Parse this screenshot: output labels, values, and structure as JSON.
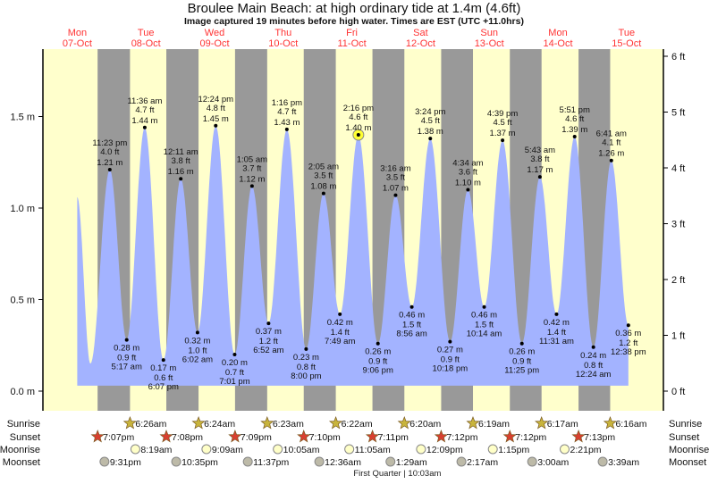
{
  "title": "Broulee Main Beach: at high  ordinary tide at 1.4m (4.6ft)",
  "subtitle": "Image captured 19 minutes before high water. Times are EST (UTC +11.0hrs)",
  "colors": {
    "day": "#ffffcc",
    "night": "#999999",
    "tide": "#a3b3ff",
    "day_label": "#ff3333",
    "sunrise": "#c8b43c",
    "sunset": "#d84030",
    "moonrise": "#ffffc8",
    "moonset": "#bdbaa8",
    "now_marker": "#ffff33"
  },
  "chart_data": {
    "type": "area",
    "title": "Broulee Main Beach: at high  ordinary tide at 1.4m (4.6ft)",
    "days": [
      {
        "dow": "Mon",
        "date": "07-Oct"
      },
      {
        "dow": "Tue",
        "date": "08-Oct"
      },
      {
        "dow": "Wed",
        "date": "09-Oct"
      },
      {
        "dow": "Thu",
        "date": "10-Oct"
      },
      {
        "dow": "Fri",
        "date": "11-Oct"
      },
      {
        "dow": "Sat",
        "date": "12-Oct"
      },
      {
        "dow": "Sun",
        "date": "13-Oct"
      },
      {
        "dow": "Mon",
        "date": "14-Oct"
      },
      {
        "dow": "Tue",
        "date": "15-Oct"
      }
    ],
    "y_left": {
      "unit": "m",
      "ticks": [
        "0.0 m",
        "0.5 m",
        "1.0 m",
        "1.5 m"
      ],
      "tick_values": [
        0,
        0.5,
        1.0,
        1.5
      ]
    },
    "y_right": {
      "unit": "ft",
      "ticks": [
        "0 ft",
        "1 ft",
        "2 ft",
        "3 ft",
        "4 ft",
        "5 ft",
        "6 ft"
      ],
      "tick_values": [
        0,
        1,
        2,
        3,
        4,
        5,
        6
      ]
    },
    "tides": [
      {
        "type": "high",
        "date": "07-Oct",
        "time": "11:23 pm",
        "ft": "4.0 ft",
        "m": "1.21 m",
        "value": 1.21
      },
      {
        "type": "low",
        "date": "08-Oct",
        "time": "5:17 am",
        "ft": "0.9 ft",
        "m": "0.28 m",
        "value": 0.28
      },
      {
        "type": "high",
        "date": "08-Oct",
        "time": "11:36 am",
        "ft": "4.7 ft",
        "m": "1.44 m",
        "value": 1.44
      },
      {
        "type": "low",
        "date": "08-Oct",
        "time": "6:07 pm",
        "ft": "0.6 ft",
        "m": "0.17 m",
        "value": 0.17
      },
      {
        "type": "high",
        "date": "09-Oct",
        "time": "12:11 am",
        "ft": "3.8 ft",
        "m": "1.16 m",
        "value": 1.16
      },
      {
        "type": "low",
        "date": "09-Oct",
        "time": "6:02 am",
        "ft": "1.0 ft",
        "m": "0.32 m",
        "value": 0.32
      },
      {
        "type": "high",
        "date": "09-Oct",
        "time": "12:24 pm",
        "ft": "4.8 ft",
        "m": "1.45 m",
        "value": 1.45
      },
      {
        "type": "low",
        "date": "09-Oct",
        "time": "7:01 pm",
        "ft": "0.7 ft",
        "m": "0.20 m",
        "value": 0.2
      },
      {
        "type": "high",
        "date": "10-Oct",
        "time": "1:05 am",
        "ft": "3.7 ft",
        "m": "1.12 m",
        "value": 1.12
      },
      {
        "type": "low",
        "date": "10-Oct",
        "time": "6:52 am",
        "ft": "1.2 ft",
        "m": "0.37 m",
        "value": 0.37
      },
      {
        "type": "high",
        "date": "10-Oct",
        "time": "1:16 pm",
        "ft": "4.7 ft",
        "m": "1.43 m",
        "value": 1.43
      },
      {
        "type": "low",
        "date": "10-Oct",
        "time": "8:00 pm",
        "ft": "0.8 ft",
        "m": "0.23 m",
        "value": 0.23
      },
      {
        "type": "high",
        "date": "11-Oct",
        "time": "2:05 am",
        "ft": "3.5 ft",
        "m": "1.08 m",
        "value": 1.08
      },
      {
        "type": "low",
        "date": "11-Oct",
        "time": "7:49 am",
        "ft": "1.4 ft",
        "m": "0.42 m",
        "value": 0.42
      },
      {
        "type": "high",
        "date": "11-Oct",
        "time": "2:16 pm",
        "ft": "4.6 ft",
        "m": "1.40 m",
        "value": 1.4,
        "current": true
      },
      {
        "type": "low",
        "date": "11-Oct",
        "time": "9:06 pm",
        "ft": "0.9 ft",
        "m": "0.26 m",
        "value": 0.26
      },
      {
        "type": "high",
        "date": "12-Oct",
        "time": "3:16 am",
        "ft": "3.5 ft",
        "m": "1.07 m",
        "value": 1.07
      },
      {
        "type": "low",
        "date": "12-Oct",
        "time": "8:56 am",
        "ft": "1.5 ft",
        "m": "0.46 m",
        "value": 0.46
      },
      {
        "type": "high",
        "date": "12-Oct",
        "time": "3:24 pm",
        "ft": "4.5 ft",
        "m": "1.38 m",
        "value": 1.38
      },
      {
        "type": "low",
        "date": "12-Oct",
        "time": "10:18 pm",
        "ft": "0.9 ft",
        "m": "0.27 m",
        "value": 0.27
      },
      {
        "type": "high",
        "date": "13-Oct",
        "time": "4:34 am",
        "ft": "3.6 ft",
        "m": "1.10 m",
        "value": 1.1
      },
      {
        "type": "low",
        "date": "13-Oct",
        "time": "10:14 am",
        "ft": "1.5 ft",
        "m": "0.46 m",
        "value": 0.46
      },
      {
        "type": "high",
        "date": "13-Oct",
        "time": "4:39 pm",
        "ft": "4.5 ft",
        "m": "1.37 m",
        "value": 1.37
      },
      {
        "type": "low",
        "date": "13-Oct",
        "time": "11:25 pm",
        "ft": "0.9 ft",
        "m": "0.26 m",
        "value": 0.26
      },
      {
        "type": "high",
        "date": "14-Oct",
        "time": "5:43 am",
        "ft": "3.8 ft",
        "m": "1.17 m",
        "value": 1.17
      },
      {
        "type": "low",
        "date": "14-Oct",
        "time": "11:31 am",
        "ft": "1.4 ft",
        "m": "0.42 m",
        "value": 0.42
      },
      {
        "type": "high",
        "date": "14-Oct",
        "time": "5:51 pm",
        "ft": "4.6 ft",
        "m": "1.39 m",
        "value": 1.39
      },
      {
        "type": "low",
        "date": "15-Oct",
        "time": "12:24 am",
        "ft": "0.8 ft",
        "m": "0.24 m",
        "value": 0.24
      },
      {
        "type": "high",
        "date": "15-Oct",
        "time": "6:41 am",
        "ft": "4.1 ft",
        "m": "1.26 m",
        "value": 1.26
      },
      {
        "type": "low",
        "date": "15-Oct",
        "time": "12:38 pm",
        "ft": "1.2 ft",
        "m": "0.36 m",
        "value": 0.36
      }
    ],
    "rows": {
      "sunrise": {
        "label": "Sunrise",
        "events": [
          {
            "date": "08-Oct",
            "time": "6:26am"
          },
          {
            "date": "09-Oct",
            "time": "6:24am"
          },
          {
            "date": "10-Oct",
            "time": "6:23am"
          },
          {
            "date": "11-Oct",
            "time": "6:22am"
          },
          {
            "date": "12-Oct",
            "time": "6:20am"
          },
          {
            "date": "13-Oct",
            "time": "6:19am"
          },
          {
            "date": "14-Oct",
            "time": "6:17am"
          },
          {
            "date": "15-Oct",
            "time": "6:16am"
          }
        ]
      },
      "sunset": {
        "label": "Sunset",
        "events": [
          {
            "date": "07-Oct",
            "time": "7:07pm"
          },
          {
            "date": "08-Oct",
            "time": "7:08pm"
          },
          {
            "date": "09-Oct",
            "time": "7:09pm"
          },
          {
            "date": "10-Oct",
            "time": "7:10pm"
          },
          {
            "date": "11-Oct",
            "time": "7:11pm"
          },
          {
            "date": "12-Oct",
            "time": "7:12pm"
          },
          {
            "date": "13-Oct",
            "time": "7:12pm"
          },
          {
            "date": "14-Oct",
            "time": "7:13pm"
          }
        ]
      },
      "moonrise": {
        "label": "Moonrise",
        "events": [
          {
            "date": "08-Oct",
            "time": "8:19am"
          },
          {
            "date": "09-Oct",
            "time": "9:09am"
          },
          {
            "date": "10-Oct",
            "time": "10:05am"
          },
          {
            "date": "11-Oct",
            "time": "11:05am"
          },
          {
            "date": "12-Oct",
            "time": "12:09pm"
          },
          {
            "date": "13-Oct",
            "time": "1:15pm"
          },
          {
            "date": "14-Oct",
            "time": "2:21pm"
          }
        ]
      },
      "moonset": {
        "label": "Moonset",
        "events": [
          {
            "date": "07-Oct",
            "time": "9:31pm"
          },
          {
            "date": "08-Oct",
            "time": "10:35pm"
          },
          {
            "date": "09-Oct",
            "time": "11:37pm"
          },
          {
            "date": "11-Oct",
            "time": "12:36am"
          },
          {
            "date": "12-Oct",
            "time": "1:29am"
          },
          {
            "date": "13-Oct",
            "time": "2:17am"
          },
          {
            "date": "14-Oct",
            "time": "3:00am"
          },
          {
            "date": "15-Oct",
            "time": "3:39am"
          }
        ]
      }
    },
    "moon_phase": {
      "label": "First Quarter | 10:03am",
      "date": "11-Oct",
      "time": "10:03am"
    }
  }
}
